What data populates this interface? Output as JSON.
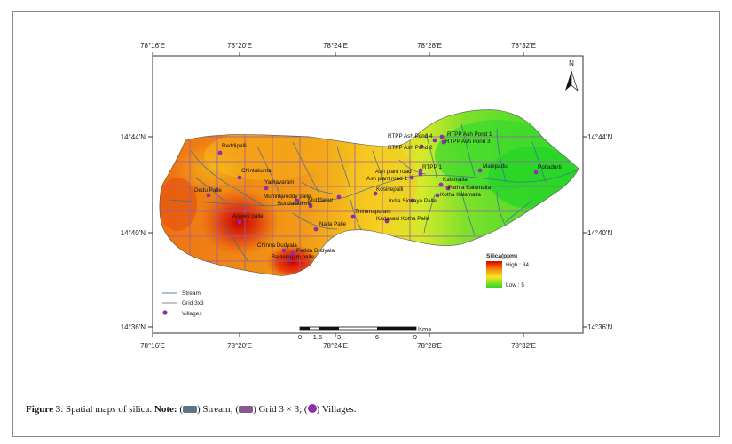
{
  "map": {
    "x_ticks": [
      "78°16'E",
      "78°20'E",
      "78°24'E",
      "78°28'E",
      "78°32'E"
    ],
    "y_ticks": [
      "14°44'N",
      "14°40'N",
      "14°36'N"
    ],
    "north": "N",
    "legend": {
      "title": "Silica(ppm)",
      "high": "High : 84",
      "low": "Low : 5",
      "items": [
        "Stream",
        "Grid 3x3",
        "Villages"
      ]
    },
    "scale": {
      "unit": "Kms",
      "ticks": [
        "0",
        "1.5",
        "3",
        "6",
        "9"
      ]
    },
    "villages": [
      "Reddipalli",
      "Chintakunta",
      "Yamavaram",
      "Dedu Palle",
      "Mummareddy palle",
      "Bondaladinne",
      "Muddanur",
      "Kosinepalli",
      "Araveti palle",
      "Nalla Palle",
      "Thimmapuram",
      "Kadasani Kotha Palle",
      "Chinna Dudyala",
      "Pedda Dudyala",
      "Balasingam palle",
      "RTPP Ash Pond 1",
      "RTPP Ash Pond 2",
      "RTPP Ash Pond 3",
      "RTPP Ash Pond 4",
      "RTPP 1",
      "Ash plant road",
      "Ash plant road-1",
      "Malepadu",
      "Potladurti",
      "Kalamalla",
      "Pathra Kalamalla",
      "Kotha Kalamalla",
      "India Siddaya Palle"
    ]
  },
  "caption": {
    "figure": "Figure 3",
    "text": ": Spatial maps of silica.",
    "note": "Note:",
    "stream": "Stream;",
    "grid": "Grid 3 × 3;",
    "villages": "Villages."
  }
}
